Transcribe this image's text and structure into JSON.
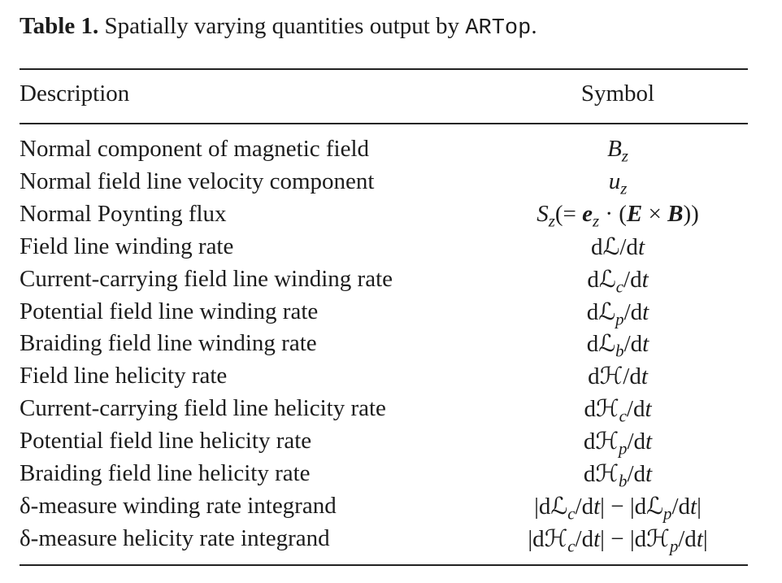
{
  "caption": {
    "label": "Table 1.",
    "text": "Spatially varying quantities output by",
    "code": "ARTop",
    "end": "."
  },
  "headers": {
    "description": "Description",
    "symbol": "Symbol"
  },
  "rows": [
    {
      "description": "Normal component of magnetic field",
      "symbol": "B_z"
    },
    {
      "description": "Normal field line velocity component",
      "symbol": "u_z"
    },
    {
      "description": "Normal Poynting flux",
      "symbol": "S_z(= e_z · (E × B))"
    },
    {
      "description": "Field line winding rate",
      "symbol": "dℒ/dt"
    },
    {
      "description": "Current-carrying field line winding rate",
      "symbol": "dℒ_c/dt"
    },
    {
      "description": "Potential field line winding rate",
      "symbol": "dℒ_p/dt"
    },
    {
      "description": "Braiding field line winding rate",
      "symbol": "dℒ_b/dt"
    },
    {
      "description": "Field line helicity rate",
      "symbol": "dℋ/dt"
    },
    {
      "description": "Current-carrying field line helicity rate",
      "symbol": "dℋ_c/dt"
    },
    {
      "description": "Potential field line helicity rate",
      "symbol": "dℋ_p/dt"
    },
    {
      "description": "Braiding field line helicity rate",
      "symbol": "dℋ_b/dt"
    },
    {
      "description": "δ-measure winding rate integrand",
      "symbol": "|dℒ_c/dt| − |dℒ_p/dt|"
    },
    {
      "description": "δ-measure helicity rate integrand",
      "symbol": "|dℋ_c/dt| − |dℋ_p/dt|"
    }
  ]
}
